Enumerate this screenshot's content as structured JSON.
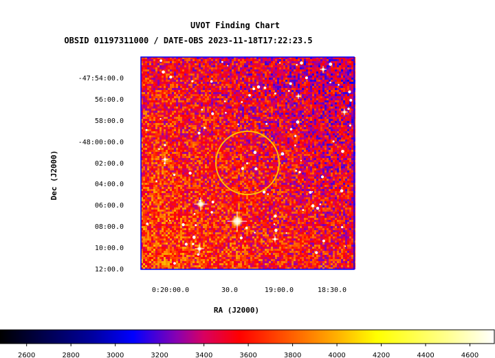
{
  "chart_data": {
    "type": "heatmap",
    "title": "UVOT Finding Chart",
    "subtitle": "OBSID 01197311000 / DATE-OBS 2023-11-18T17:22:23.5",
    "xlabel": "RA (J2000)",
    "ylabel": "Dec (J2000)",
    "x_ticks": [
      "0:20:00.0",
      "30.0",
      "19:00.0",
      "18:30.0"
    ],
    "y_ticks": [
      "-47:54:00.0",
      "56:00.0",
      "58:00.0",
      "-48:00:00.0",
      "02:00.0",
      "04:00.0",
      "06:00.0",
      "08:00.0",
      "10:00.0",
      "12:00.0"
    ],
    "colorbar": {
      "ticks": [
        2600,
        2800,
        3000,
        3200,
        3400,
        3600,
        3800,
        4000,
        4200,
        4400,
        4600
      ],
      "range": [
        2480,
        4710
      ],
      "stops": [
        {
          "value": 2480,
          "color": "#000000"
        },
        {
          "value": 2900,
          "color": "#0000a0"
        },
        {
          "value": 3080,
          "color": "#0000ff"
        },
        {
          "value": 3280,
          "color": "#8a00b0"
        },
        {
          "value": 3400,
          "color": "#d80060"
        },
        {
          "value": 3560,
          "color": "#ff0000"
        },
        {
          "value": 3800,
          "color": "#ff6000"
        },
        {
          "value": 4000,
          "color": "#ffb000"
        },
        {
          "value": 4180,
          "color": "#ffff00"
        },
        {
          "value": 4500,
          "color": "#ffff90"
        },
        {
          "value": 4710,
          "color": "#ffffff"
        }
      ]
    },
    "frame_color": "#0000ff",
    "marker": {
      "shape": "circle",
      "color": "#ffc000"
    },
    "grid": false
  }
}
